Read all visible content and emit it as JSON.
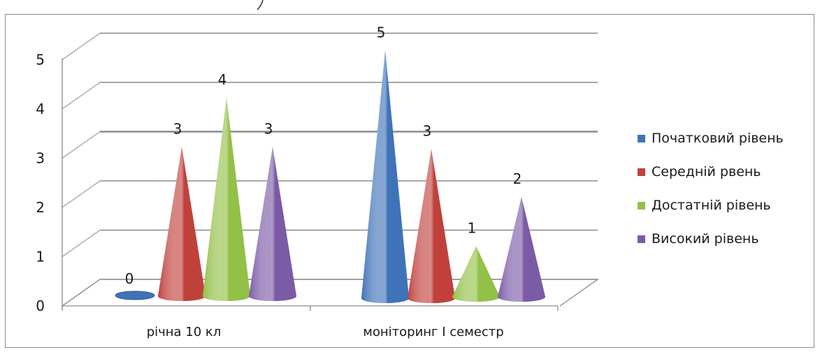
{
  "chart_data": {
    "type": "bar",
    "shape": "cone",
    "categories": [
      "річна 10 кл",
      "моніторинг І семестр"
    ],
    "series": [
      {
        "name": "Початковий рівень",
        "values": [
          0,
          5
        ],
        "color": "#3f73b8"
      },
      {
        "name": "Середній рвень",
        "values": [
          3,
          3
        ],
        "color": "#c0413c"
      },
      {
        "name": "Достатній рівень",
        "values": [
          4,
          1
        ],
        "color": "#93c047"
      },
      {
        "name": "Високий рівень",
        "values": [
          3,
          2
        ],
        "color": "#7b5aa6"
      }
    ],
    "y_ticks": [
      "0",
      "1",
      "2",
      "3",
      "4",
      "5"
    ],
    "ylim": [
      0,
      5
    ],
    "data_labels": true,
    "grid": true,
    "legend_position": "right"
  }
}
